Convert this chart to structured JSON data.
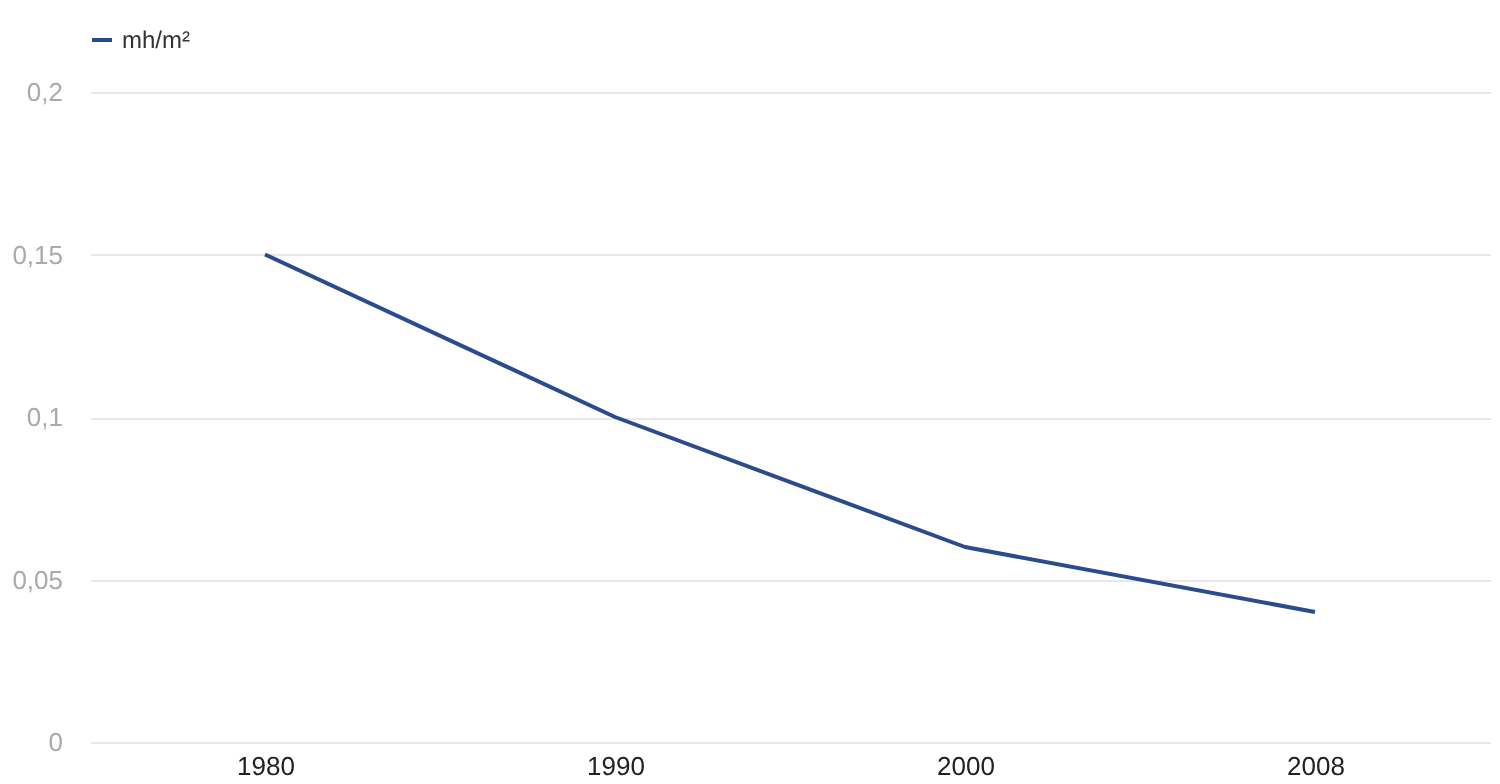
{
  "chart_data": {
    "type": "line",
    "categories": [
      "1980",
      "1990",
      "2000",
      "2008"
    ],
    "series": [
      {
        "name": "mh/m²",
        "color": "#2a4b8d",
        "values": [
          0.15,
          0.1,
          0.06,
          0.04
        ]
      }
    ],
    "ylim": [
      0,
      0.2
    ],
    "yticks": [
      {
        "value": 0,
        "label": "0"
      },
      {
        "value": 0.05,
        "label": "0,05"
      },
      {
        "value": 0.1,
        "label": "0,1"
      },
      {
        "value": 0.15,
        "label": "0,15"
      },
      {
        "value": 0.2,
        "label": "0,2"
      }
    ],
    "grid": "y",
    "legend": "top left",
    "marker": "none",
    "line_style": "solid"
  }
}
